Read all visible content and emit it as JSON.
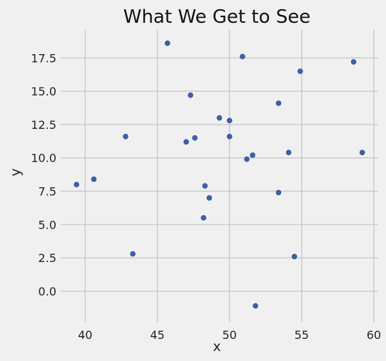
{
  "chart_data": {
    "type": "scatter",
    "title": "What We Get to See",
    "xlabel": "x",
    "ylabel": "y",
    "xlim": [
      38.3,
      60.3
    ],
    "ylim": [
      -2.3,
      19.6
    ],
    "xticks": [
      40,
      45,
      50,
      55,
      60
    ],
    "yticks": [
      0.0,
      2.5,
      5.0,
      7.5,
      10.0,
      12.5,
      15.0,
      17.5
    ],
    "xtick_labels": [
      "40",
      "45",
      "50",
      "55",
      "60"
    ],
    "ytick_labels": [
      "0.0",
      "2.5",
      "5.0",
      "7.5",
      "10.0",
      "12.5",
      "15.0",
      "17.5"
    ],
    "grid": true,
    "marker_color": "#3f5fa8",
    "background": "#f0f0f0",
    "points": [
      {
        "x": 45.7,
        "y": 18.6
      },
      {
        "x": 50.9,
        "y": 17.6
      },
      {
        "x": 58.6,
        "y": 17.2
      },
      {
        "x": 54.9,
        "y": 16.5
      },
      {
        "x": 47.3,
        "y": 14.7
      },
      {
        "x": 53.4,
        "y": 14.1
      },
      {
        "x": 49.3,
        "y": 13.0
      },
      {
        "x": 50.0,
        "y": 12.8
      },
      {
        "x": 42.8,
        "y": 11.6
      },
      {
        "x": 50.0,
        "y": 11.6
      },
      {
        "x": 47.6,
        "y": 11.5
      },
      {
        "x": 47.0,
        "y": 11.2
      },
      {
        "x": 54.1,
        "y": 10.4
      },
      {
        "x": 59.2,
        "y": 10.4
      },
      {
        "x": 51.6,
        "y": 10.2
      },
      {
        "x": 51.2,
        "y": 9.9
      },
      {
        "x": 40.6,
        "y": 8.4
      },
      {
        "x": 39.4,
        "y": 8.0
      },
      {
        "x": 48.3,
        "y": 7.9
      },
      {
        "x": 53.4,
        "y": 7.4
      },
      {
        "x": 48.6,
        "y": 7.0
      },
      {
        "x": 48.2,
        "y": 5.5
      },
      {
        "x": 43.3,
        "y": 2.8
      },
      {
        "x": 54.5,
        "y": 2.6
      },
      {
        "x": 51.8,
        "y": -1.1
      }
    ]
  }
}
